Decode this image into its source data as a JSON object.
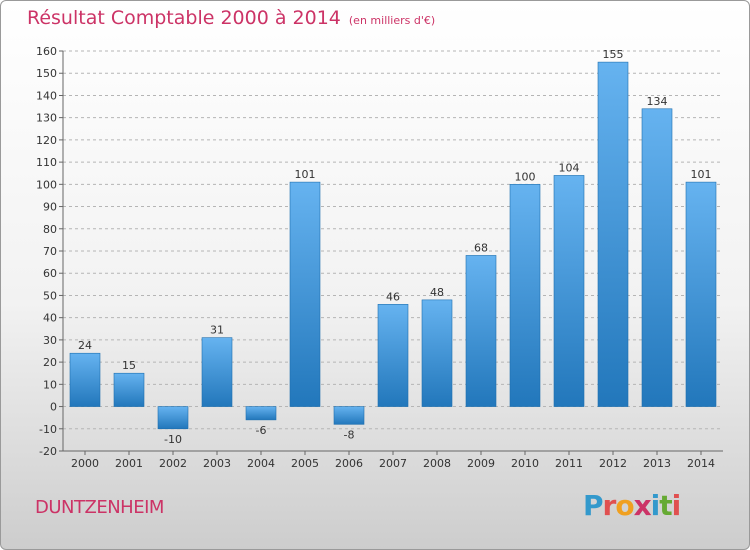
{
  "title": "Résultat Comptable 2000 à 2014",
  "subtitle": "(en milliers d'€)",
  "commune": "DUNTZENHEIM",
  "logo": {
    "text": "Proxiti",
    "letters": [
      "P",
      "r",
      "o",
      "x",
      "i",
      "t",
      "i"
    ],
    "colors": [
      "#3399cc",
      "#e05050",
      "#f0a020",
      "#cc3366",
      "#3399cc",
      "#66aa33",
      "#e05050"
    ]
  },
  "colors": {
    "bar_light": "#66b3f0",
    "bar_dark": "#2277bb",
    "title": "#cc3366"
  },
  "chart_data": {
    "type": "bar",
    "categories": [
      "2000",
      "2001",
      "2002",
      "2003",
      "2004",
      "2005",
      "2006",
      "2007",
      "2008",
      "2009",
      "2010",
      "2011",
      "2012",
      "2013",
      "2014"
    ],
    "values": [
      24,
      15,
      -10,
      31,
      -6,
      101,
      -8,
      46,
      48,
      68,
      100,
      104,
      155,
      134,
      101
    ],
    "value_labels": [
      "24",
      "15",
      "-10",
      "31",
      "-6",
      "101",
      "-8",
      "46",
      "48",
      "68",
      "100",
      "104",
      "155",
      "134",
      "101"
    ],
    "yticks": [
      "-20",
      "-10",
      "0",
      "10",
      "20",
      "30",
      "40",
      "50",
      "60",
      "70",
      "80",
      "90",
      "100",
      "110",
      "120",
      "130",
      "140",
      "150",
      "160"
    ],
    "ylim": [
      -20,
      160
    ],
    "grid": true,
    "xlabel": "",
    "ylabel": ""
  }
}
